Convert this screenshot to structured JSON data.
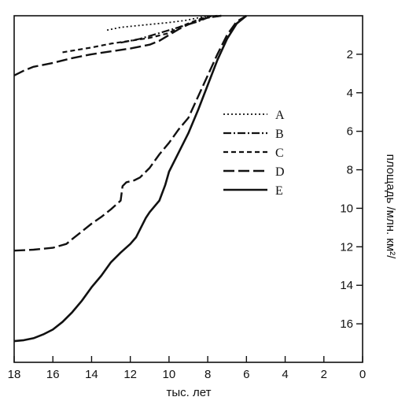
{
  "chart_data": {
    "type": "line",
    "xlabel": "тыс. лет",
    "ylabel": "площадь /млн. км²/",
    "xlim": [
      18,
      0
    ],
    "ylim": [
      0,
      18
    ],
    "x_inverted": true,
    "y_inverted": true,
    "y_axis_position": "right",
    "x_ticks": [
      18,
      16,
      14,
      12,
      10,
      8,
      6,
      4,
      2,
      0
    ],
    "y_ticks": [
      2,
      4,
      6,
      8,
      10,
      12,
      14,
      16
    ],
    "grid": false,
    "legend_position": "center-right",
    "series": [
      {
        "name": "A",
        "style": "dotted",
        "points": [
          [
            13.2,
            0.75
          ],
          [
            12.5,
            0.6
          ],
          [
            11,
            0.45
          ],
          [
            10,
            0.35
          ],
          [
            9.2,
            0.25
          ],
          [
            8.2,
            0.05
          ],
          [
            7.5,
            0
          ]
        ]
      },
      {
        "name": "B",
        "style": "dash-dot",
        "points": [
          [
            12.5,
            1.4
          ],
          [
            11.5,
            1.2
          ],
          [
            10.5,
            0.9
          ],
          [
            9.5,
            0.6
          ],
          [
            8.5,
            0.3
          ],
          [
            8,
            0.1
          ],
          [
            7.3,
            0
          ]
        ]
      },
      {
        "name": "C",
        "style": "short-dash",
        "points": [
          [
            15.5,
            1.9
          ],
          [
            14,
            1.65
          ],
          [
            13,
            1.45
          ],
          [
            12,
            1.3
          ],
          [
            11,
            1.15
          ],
          [
            10,
            0.9
          ],
          [
            9.5,
            0.6
          ],
          [
            9,
            0.4
          ],
          [
            8.5,
            0.2
          ],
          [
            8,
            0.05
          ],
          [
            7.5,
            0
          ]
        ]
      },
      {
        "name": "D",
        "style": "long-dash",
        "points": [
          [
            18,
            3.1
          ],
          [
            17.5,
            2.85
          ],
          [
            17,
            2.65
          ],
          [
            16,
            2.45
          ],
          [
            15,
            2.2
          ],
          [
            14,
            2.0
          ],
          [
            13,
            1.85
          ],
          [
            12,
            1.7
          ],
          [
            11,
            1.5
          ],
          [
            10.5,
            1.3
          ],
          [
            10,
            1.0
          ],
          [
            9.5,
            0.7
          ],
          [
            9,
            0.45
          ],
          [
            8.5,
            0.25
          ],
          [
            8,
            0.1
          ],
          [
            7.3,
            0
          ]
        ]
      },
      {
        "name": "E",
        "style": "solid",
        "points": [
          [
            18,
            16.9
          ],
          [
            17.5,
            16.85
          ],
          [
            17,
            16.75
          ],
          [
            16.5,
            16.55
          ],
          [
            16,
            16.3
          ],
          [
            15.5,
            15.9
          ],
          [
            15,
            15.4
          ],
          [
            14.5,
            14.8
          ],
          [
            14,
            14.1
          ],
          [
            13.5,
            13.5
          ],
          [
            13,
            12.8
          ],
          [
            12.5,
            12.3
          ],
          [
            12,
            11.85
          ],
          [
            11.7,
            11.5
          ],
          [
            11.5,
            11.1
          ],
          [
            11.2,
            10.5
          ],
          [
            11,
            10.2
          ],
          [
            10.5,
            9.6
          ],
          [
            10.2,
            8.8
          ],
          [
            10,
            8.1
          ],
          [
            9.5,
            7.1
          ],
          [
            9,
            6.1
          ],
          [
            8.5,
            4.9
          ],
          [
            8,
            3.6
          ],
          [
            7.5,
            2.3
          ],
          [
            7,
            1.2
          ],
          [
            6.5,
            0.4
          ],
          [
            6,
            0
          ]
        ]
      },
      {
        "name": "",
        "style": "long-dash",
        "points": [
          [
            18,
            12.2
          ],
          [
            17,
            12.15
          ],
          [
            16,
            12.05
          ],
          [
            15.3,
            11.85
          ],
          [
            15,
            11.6
          ],
          [
            14.5,
            11.2
          ],
          [
            14,
            10.8
          ],
          [
            13.5,
            10.45
          ],
          [
            13,
            10.05
          ],
          [
            12.5,
            9.6
          ],
          [
            12.4,
            8.85
          ],
          [
            12.2,
            8.65
          ],
          [
            11.8,
            8.55
          ],
          [
            11.5,
            8.4
          ],
          [
            11,
            7.9
          ],
          [
            10.5,
            7.2
          ],
          [
            10,
            6.6
          ],
          [
            9.5,
            5.9
          ],
          [
            9,
            5.3
          ],
          [
            8.5,
            4.2
          ],
          [
            8,
            3.1
          ],
          [
            7.5,
            2.0
          ],
          [
            7,
            1.0
          ],
          [
            6.5,
            0.3
          ],
          [
            6,
            0
          ]
        ]
      }
    ]
  }
}
